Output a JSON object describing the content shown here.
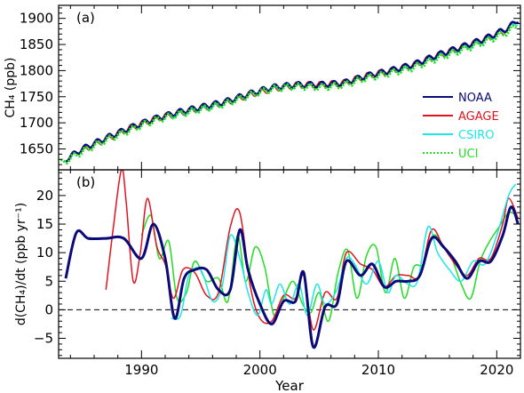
{
  "colors": {
    "NOAA": "#0a0a78",
    "AGAGE": "#e0141e",
    "CSIRO": "#1ee6e6",
    "UCI": "#22dd22",
    "axes": "#000000",
    "zero_line": "#000000"
  },
  "chart_data": [
    {
      "type": "line",
      "panel_label": "(a)",
      "ylabel": "CH₄ (ppb)",
      "xlabel": "",
      "xlim": [
        1983,
        2022
      ],
      "ylim": [
        1610,
        1925
      ],
      "xticks": [
        1990,
        2000,
        2010,
        2020
      ],
      "yticks": [
        1650,
        1700,
        1750,
        1800,
        1850,
        1900
      ],
      "ytick_labels": [
        "1650",
        "1700",
        "1750",
        "1800",
        "1850",
        "1900"
      ],
      "legend_position": "right",
      "legend": [
        {
          "name": "NOAA",
          "style": "solid"
        },
        {
          "name": "AGAGE",
          "style": "solid"
        },
        {
          "name": "CSIRO",
          "style": "solid"
        },
        {
          "name": "UCI",
          "style": "dotted"
        }
      ],
      "series": [
        {
          "name": "NOAA",
          "x": [
            1983.6,
            1985,
            1987,
            1989,
            1991,
            1993,
            1995,
            1997,
            1999,
            2001,
            2003,
            2005,
            2007,
            2009,
            2011,
            2013,
            2015,
            2017,
            2019,
            2021,
            2021.8
          ],
          "y": [
            1630,
            1650,
            1671,
            1690,
            1707,
            1720,
            1730,
            1740,
            1755,
            1768,
            1773,
            1773,
            1776,
            1790,
            1800,
            1812,
            1830,
            1845,
            1861,
            1882,
            1898
          ]
        },
        {
          "name": "AGAGE",
          "x": [
            1985,
            1987,
            1989,
            1991,
            1993,
            1995,
            1997,
            1999,
            2001,
            2003,
            2005,
            2007,
            2009,
            2011,
            2013,
            2015,
            2017,
            2019,
            2021
          ],
          "y": [
            1648,
            1669,
            1690,
            1707,
            1718,
            1728,
            1738,
            1753,
            1765,
            1772,
            1773,
            1776,
            1790,
            1799,
            1811,
            1829,
            1844,
            1860,
            1880
          ]
        },
        {
          "name": "CSIRO",
          "x": [
            1992.5,
            1994,
            1996,
            1998,
            2000,
            2002,
            2004,
            2006,
            2008,
            2010,
            2012,
            2014,
            2016,
            2018,
            2020,
            2021.8
          ],
          "y": [
            1712,
            1722,
            1730,
            1745,
            1762,
            1768,
            1772,
            1772,
            1782,
            1794,
            1802,
            1818,
            1835,
            1848,
            1868,
            1892
          ]
        },
        {
          "name": "UCI",
          "x": [
            1983.2,
            1985,
            1987,
            1989,
            1991,
            1993,
            1995,
            1997,
            1999,
            2001,
            2003,
            2005,
            2007,
            2009,
            2011,
            2013,
            2015,
            2017,
            2019,
            2021,
            2021.7
          ],
          "y": [
            1622,
            1645,
            1667,
            1686,
            1704,
            1716,
            1726,
            1736,
            1752,
            1765,
            1770,
            1768,
            1772,
            1786,
            1795,
            1806,
            1824,
            1839,
            1855,
            1875,
            1888
          ]
        }
      ]
    },
    {
      "type": "line",
      "panel_label": "(b)",
      "ylabel": "d(CH₄)/dt (ppb yr⁻¹)",
      "xlabel": "Year",
      "xlim": [
        1983,
        2022
      ],
      "ylim": [
        -8.5,
        24.5
      ],
      "xticks": [
        1990,
        2000,
        2010,
        2020
      ],
      "yticks": [
        -5,
        0,
        5,
        10,
        15,
        20
      ],
      "ytick_labels": [
        "−5",
        "0",
        "5",
        "10",
        "15",
        "20"
      ],
      "zero_line": "dashed",
      "series": [
        {
          "name": "NOAA",
          "x": [
            1983.6,
            1984.5,
            1985.5,
            1987,
            1988.5,
            1990,
            1991,
            1992,
            1992.8,
            1993.6,
            1994.5,
            1995.5,
            1996.5,
            1997.5,
            1998.3,
            1999,
            2000,
            2001,
            2002,
            2003,
            2003.7,
            2004.5,
            2005.5,
            2006.5,
            2007.3,
            2008.5,
            2009.5,
            2010.5,
            2011.5,
            2012.5,
            2013.5,
            2014.5,
            2015.5,
            2016.5,
            2017.5,
            2018.5,
            2019.5,
            2020.5,
            2021.2,
            2021.8
          ],
          "y": [
            5.5,
            13.5,
            12.5,
            12.5,
            12.5,
            9,
            15,
            9,
            -1.5,
            5.5,
            7,
            7,
            3.5,
            3.5,
            14,
            7,
            1,
            -2.5,
            1.5,
            1.5,
            6.5,
            -6.5,
            0.5,
            1,
            8.5,
            6,
            8,
            4,
            5,
            5,
            6,
            12.5,
            11,
            8.5,
            5.5,
            8.5,
            8.5,
            13,
            18,
            15
          ]
        },
        {
          "name": "AGAGE",
          "x": [
            1987,
            1987.6,
            1988.3,
            1988.7,
            1989.3,
            1989.9,
            1990.5,
            1991.3,
            1992,
            1992.7,
            1993.5,
            1994.5,
            1995.5,
            1996.5,
            1997.5,
            1998.3,
            1999.2,
            2000,
            2001,
            2002,
            2003,
            2003.7,
            2004.5,
            2005.5,
            2006.5,
            2007.3,
            2008.5,
            2009.5,
            2010.5,
            2011.5,
            2012.5,
            2013.5,
            2014.5,
            2015.5,
            2016.5,
            2017.5,
            2018.5,
            2019.5,
            2020.5,
            2021,
            2021.8
          ],
          "y": [
            3.5,
            14,
            24.5,
            19,
            5,
            10,
            19.5,
            11,
            8,
            2,
            7,
            6.5,
            2.5,
            3,
            14.5,
            17,
            4,
            -1.5,
            -2,
            2.5,
            2,
            6,
            -3.5,
            3,
            2,
            10,
            8,
            7,
            4,
            6,
            6,
            6,
            14,
            11,
            8,
            6,
            9,
            9,
            15,
            19.5,
            16
          ]
        },
        {
          "name": "CSIRO",
          "x": [
            1992.5,
            1993.3,
            1994,
            1995,
            1996,
            1996.8,
            1997.5,
            1998.3,
            1999,
            1999.8,
            2000.5,
            2001,
            2001.7,
            2002.5,
            2003.3,
            2004,
            2004.8,
            2005.5,
            2006.5,
            2007.3,
            2008,
            2009,
            2010,
            2010.8,
            2011.5,
            2012.5,
            2013.3,
            2014.2,
            2015,
            2016,
            2017,
            2018,
            2019,
            2020,
            2021,
            2021.6
          ],
          "y": [
            -1.5,
            -1,
            6,
            7,
            1.5,
            4,
            13,
            9,
            3,
            -1,
            3.5,
            1,
            4.5,
            1,
            4.5,
            -1,
            4.5,
            1,
            3.5,
            9,
            8,
            4.5,
            8.5,
            3,
            6,
            4.5,
            5,
            14.5,
            10,
            7,
            5,
            8.5,
            8,
            13,
            20,
            22
          ]
        },
        {
          "name": "UCI",
          "x": [
            1990,
            1990.8,
            1991.5,
            1992.3,
            1993,
            1993.8,
            1994.5,
            1995.5,
            1996.5,
            1997.3,
            1998.1,
            1998.8,
            1999.6,
            2000.4,
            2001.2,
            2002,
            2002.8,
            2003.6,
            2004.3,
            2005,
            2005.8,
            2006.6,
            2007.4,
            2008.2,
            2009,
            2009.8,
            2010.6,
            2011.4,
            2012.2,
            2013,
            2013.8,
            2014.6,
            2015.4,
            2016.2,
            2017,
            2017.8,
            2018.6,
            2019.4,
            2020.2,
            2021,
            2021.7
          ],
          "y": [
            13,
            16.5,
            9,
            12,
            2,
            3,
            8.5,
            5,
            5.5,
            1.5,
            13,
            5,
            11,
            7.5,
            -1,
            2,
            5,
            1,
            -0.5,
            3,
            -2,
            6.5,
            10.5,
            2,
            9.5,
            11,
            3,
            9,
            2,
            7.5,
            8,
            13,
            11.5,
            9,
            4.5,
            2,
            8.5,
            12,
            14.5,
            17,
            16.5
          ]
        }
      ]
    }
  ]
}
